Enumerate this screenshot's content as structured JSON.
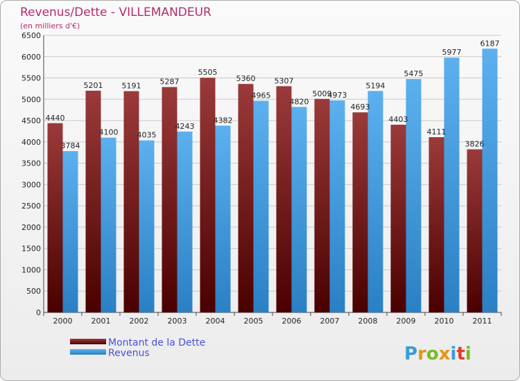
{
  "chart_data": {
    "type": "bar",
    "title": "Revenus/Dette - VILLEMANDEUR",
    "subtitle": "(en milliers d'€)",
    "categories": [
      "2000",
      "2001",
      "2002",
      "2003",
      "2004",
      "2005",
      "2006",
      "2007",
      "2008",
      "2009",
      "2010",
      "2011"
    ],
    "series": [
      {
        "name": "Montant de la Dette",
        "color": "#7b1414",
        "values": [
          4440,
          5201,
          5191,
          5287,
          5505,
          5360,
          5307,
          5009,
          4693,
          4403,
          4111,
          3826
        ]
      },
      {
        "name": "Revenus",
        "color": "#4aa3e6",
        "values": [
          3784,
          4100,
          4035,
          4243,
          4382,
          4965,
          4820,
          4973,
          5194,
          5475,
          5977,
          6187
        ]
      }
    ],
    "ylim": [
      0,
      6500
    ],
    "yticks": [
      0,
      500,
      1000,
      1500,
      2000,
      2500,
      3000,
      3500,
      4000,
      4500,
      5000,
      5500,
      6000,
      6500
    ],
    "grid": true,
    "legend_position": "bottom-left"
  },
  "brand": {
    "letters": [
      "P",
      "r",
      "o",
      "x",
      "i",
      "t",
      "i"
    ],
    "colors": [
      "#3a9bd9",
      "#e8931c",
      "#7ab929",
      "#e8931c",
      "#3a9bd9",
      "#e83a2b",
      "#7ab929"
    ]
  }
}
